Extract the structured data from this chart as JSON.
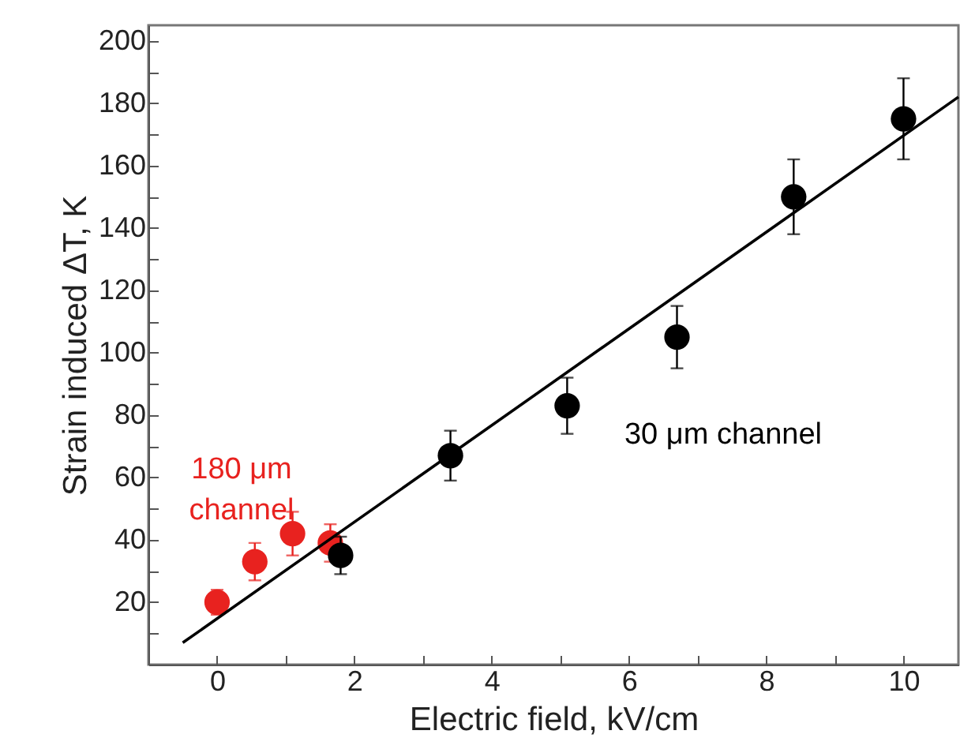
{
  "chart_data": {
    "type": "scatter",
    "xlabel": "Electric field, kV/cm",
    "ylabel": "Strain induced ΔT, K",
    "xlim": [
      -1,
      10.8
    ],
    "ylim": [
      0,
      205
    ],
    "xticks": [
      0,
      {
        "value": 1,
        "label": null
      },
      2,
      {
        "value": 3,
        "label": null
      },
      4,
      {
        "value": 5,
        "label": null
      },
      6,
      {
        "value": 7,
        "label": null
      },
      8,
      {
        "value": 9,
        "label": null
      },
      10
    ],
    "yticks": [
      {
        "value": 10,
        "label": null
      },
      20,
      {
        "value": 30,
        "label": null
      },
      40,
      {
        "value": 50,
        "label": null
      },
      60,
      {
        "value": 70,
        "label": null
      },
      80,
      {
        "value": 90,
        "label": null
      },
      100,
      {
        "value": 110,
        "label": null
      },
      120,
      {
        "value": 130,
        "label": null
      },
      140,
      {
        "value": 150,
        "label": null
      },
      160,
      {
        "value": 170,
        "label": null
      },
      180,
      {
        "value": 190,
        "label": null
      },
      200
    ],
    "marker": "circle",
    "grid": false,
    "series": [
      {
        "name": "180 μm channel",
        "color": "#e8221f",
        "x": [
          0,
          0.55,
          1.1,
          1.65
        ],
        "values": [
          20,
          33,
          42,
          39
        ],
        "errors": [
          4,
          6,
          7,
          6
        ]
      },
      {
        "name": "30 μm channel",
        "color": "#000000",
        "x": [
          1.8,
          3.4,
          5.1,
          6.7,
          8.4,
          10
        ],
        "values": [
          35,
          67,
          83,
          105,
          150,
          175
        ],
        "errors": [
          6,
          8,
          9,
          10,
          12,
          13
        ]
      },
      {
        "type": "line",
        "color": "#000000",
        "x": [
          -0.5,
          10.8
        ],
        "values": [
          7,
          182
        ],
        "marker": "none"
      }
    ]
  }
}
